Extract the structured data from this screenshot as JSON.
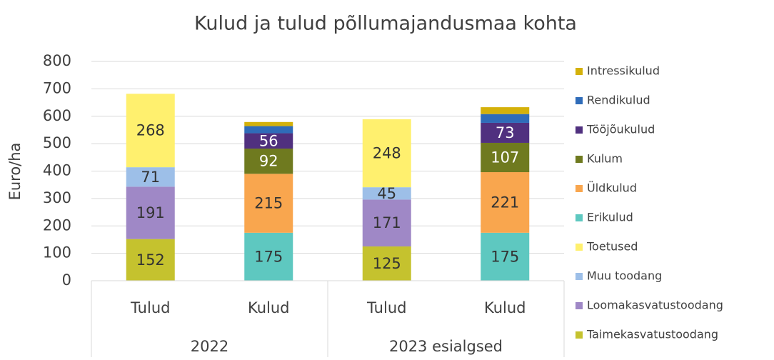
{
  "chart_data": {
    "type": "stacked_bar",
    "title": "Kulud ja tulud põllumajandusmaa kohta",
    "y_label": "Euro/ha",
    "categories": [
      "Tulud",
      "Kulud",
      "Tulud",
      "Kulud"
    ],
    "groups": [
      {
        "name": "2022",
        "span": 2
      },
      {
        "name": "2023 esialgsed",
        "span": 2
      }
    ],
    "ylim": [
      0,
      800
    ],
    "yticks": [
      0,
      100,
      200,
      300,
      400,
      500,
      600,
      700,
      800
    ],
    "grid": true,
    "legend": "right",
    "series": [
      {
        "name": "Taimekasvatustoodang",
        "color": "#c5c22e",
        "show_labels": true,
        "label_color": "#333333",
        "values": [
          152,
          null,
          125,
          null
        ]
      },
      {
        "name": "Loomakasvatustoodang",
        "color": "#9f88c6",
        "show_labels": true,
        "label_color": "#333333",
        "values": [
          191,
          null,
          171,
          null
        ]
      },
      {
        "name": "Muu toodang",
        "color": "#9dbfe8",
        "show_labels": true,
        "label_color": "#333333",
        "values": [
          71,
          null,
          45,
          null
        ]
      },
      {
        "name": "Toetused",
        "color": "#fff06e",
        "show_labels": true,
        "label_color": "#333333",
        "values": [
          268,
          null,
          248,
          null
        ]
      },
      {
        "name": "Erikulud",
        "color": "#5ec8c0",
        "show_labels": true,
        "label_color": "#333333",
        "values": [
          null,
          175,
          null,
          175
        ]
      },
      {
        "name": "Üldkulud",
        "color": "#f9a64e",
        "show_labels": true,
        "label_color": "#333333",
        "values": [
          null,
          215,
          null,
          221
        ]
      },
      {
        "name": "Kulum",
        "color": "#6f7a1f",
        "show_labels": true,
        "label_color": "#ffffff",
        "values": [
          null,
          92,
          null,
          107
        ]
      },
      {
        "name": "Tööjõukulud",
        "color": "#50307f",
        "show_labels": true,
        "label_color": "#ffffff",
        "values": [
          null,
          56,
          null,
          73
        ]
      },
      {
        "name": "Rendikulud",
        "color": "#2f6cb9",
        "show_labels": false,
        "label_color": "#ffffff",
        "values": [
          null,
          26,
          null,
          32
        ]
      },
      {
        "name": "Intressikulud",
        "color": "#d4b10a",
        "show_labels": false,
        "label_color": "#333333",
        "values": [
          null,
          15,
          null,
          25
        ]
      }
    ]
  }
}
